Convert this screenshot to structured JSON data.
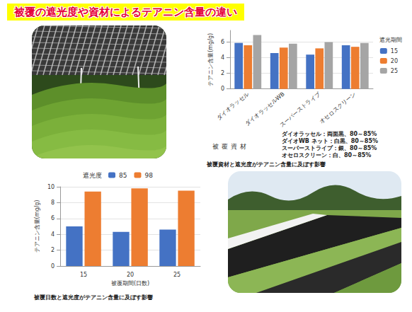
{
  "slide_title": "被覆の遮光度や資材によるテアニン含量の違い",
  "chart_data": [
    {
      "type": "bar",
      "title": "被覆資材と遮光度がテアニン含量に及ぼす影響",
      "x_label": "被覆資材",
      "y_label": "テアニン含量(mg/g)",
      "legend_title": "遮光期間",
      "categories": [
        "ダイオラッセル",
        "ダイオラッセルWB",
        "スーパーストライプ",
        "オセロスクリーン"
      ],
      "series": [
        {
          "name": "15",
          "color": "#4472c4",
          "values": [
            5.9,
            4.6,
            4.4,
            5.6
          ]
        },
        {
          "name": "20",
          "color": "#ed7d31",
          "values": [
            5.6,
            5.3,
            5.2,
            5.4
          ]
        },
        {
          "name": "25",
          "color": "#a5a5a5",
          "values": [
            6.9,
            5.8,
            6.0,
            5.9
          ]
        }
      ],
      "ylim": [
        0,
        7.5
      ],
      "yticks": [
        0,
        2,
        4,
        6
      ],
      "grid": true,
      "legend": "right",
      "notes": [
        "ダイオラッセル：両面黒、80～85%",
        "ダイオWB ネット：白黒、80～85%",
        "スーパーストライプ：銀、80～85%",
        "オセロスクリーン：白、80～85%"
      ]
    },
    {
      "type": "bar",
      "title": "被覆日数と遮光度がテアニン含量に及ぼす影響",
      "x_label": "被覆期間(日数)",
      "y_label": "テアニン含量(mg/g)",
      "legend_title": "遮光度",
      "categories": [
        "15",
        "20",
        "25"
      ],
      "series": [
        {
          "name": "85",
          "color": "#4472c4",
          "values": [
            5.0,
            4.3,
            4.6
          ]
        },
        {
          "name": "98",
          "color": "#ed7d31",
          "values": [
            9.4,
            9.8,
            9.5
          ]
        }
      ],
      "ylim": [
        0,
        10
      ],
      "yticks": [
        0,
        2,
        4,
        6,
        8,
        10
      ],
      "grid": true,
      "legend": "top"
    }
  ]
}
